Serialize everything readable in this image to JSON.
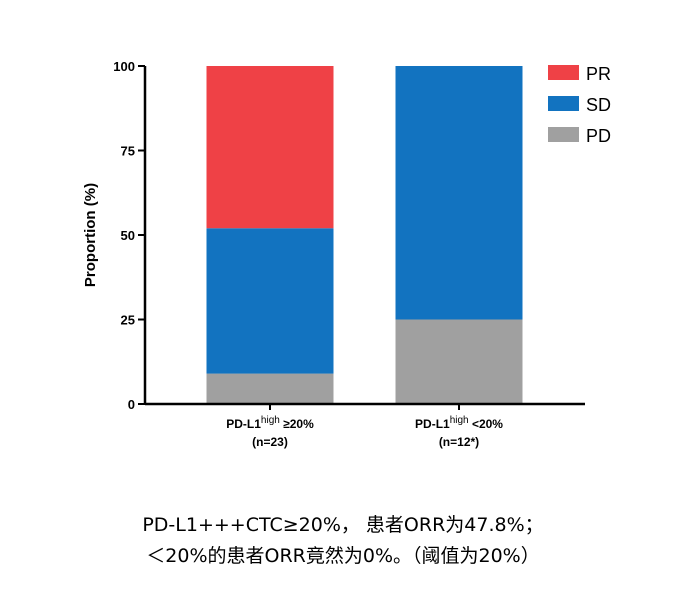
{
  "chart_data": {
    "type": "bar",
    "stacked": true,
    "ylabel": "Proportion (%)",
    "ylim": [
      0,
      100
    ],
    "yticks": [
      0,
      25,
      50,
      75,
      100
    ],
    "categories": [
      {
        "line1": "PD-L1",
        "sup": "high",
        "line1_suffix": " ≥20%",
        "line2": "(n=23)"
      },
      {
        "line1": "PD-L1",
        "sup": "high",
        "line1_suffix": " <20%",
        "line2": "(n=12*)"
      }
    ],
    "series": [
      {
        "name": "PD",
        "color": "#a0a0a0",
        "values": [
          9,
          25
        ]
      },
      {
        "name": "SD",
        "color": "#1273c0",
        "values": [
          43,
          75
        ]
      },
      {
        "name": "PR",
        "color": "#ef4146",
        "values": [
          48,
          0
        ]
      }
    ],
    "legend": [
      "PR",
      "SD",
      "PD"
    ],
    "legend_position": "right"
  },
  "caption": {
    "line1": "PD-L1+++CTC≥20%， 患者ORR为47.8%；",
    "line2": "＜20%的患者ORR竟然为0%。（阈值为20%）"
  }
}
